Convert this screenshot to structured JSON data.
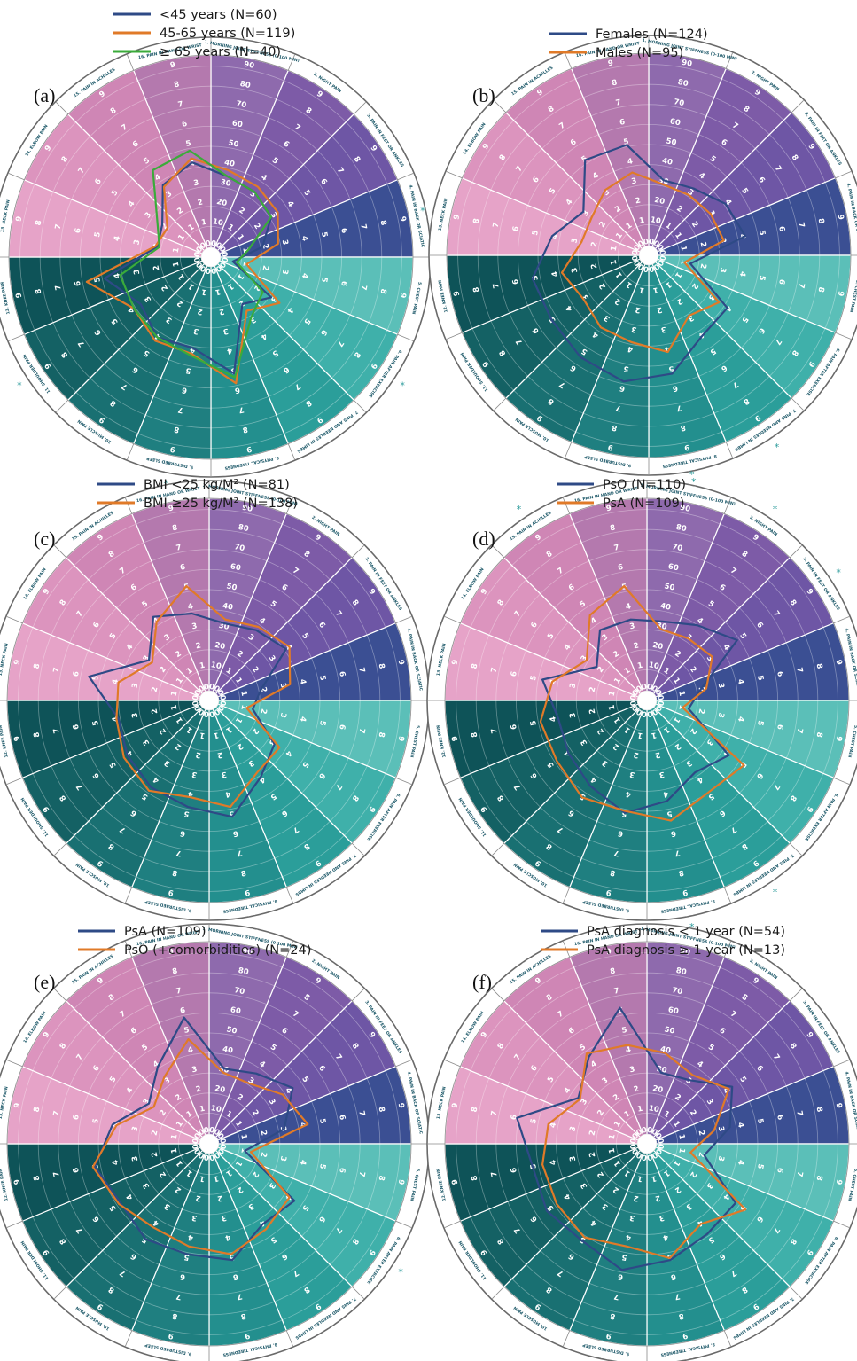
{
  "colors": {
    "series_blue": "#2e4a86",
    "series_orange": "#e07a28",
    "series_green": "#3aab3a",
    "star": "#2a9a9a",
    "segment_fills": [
      "#8e6aad",
      "#7d5ba7",
      "#6e56a5",
      "#3b4f93",
      "#5bbfb8",
      "#3fb0aa",
      "#2b9e9a",
      "#238f8e",
      "#1f7f80",
      "#197072",
      "#146164",
      "#0e5358",
      "#e6a3c8",
      "#dc94be",
      "#cf86b5",
      "#b479ae"
    ]
  },
  "segments": [
    "1. MORNING JOINT STIFFNESS (0-100 MIN)",
    "2. NIGHT PAIN",
    "3. PAIN IN FEET OR ANKLES",
    "4. PAIN IN BACK OR SCIATIC",
    "5. CHEST PAIN",
    "6. PAIN AFTER EXERCISE",
    "7. PINS AND NEEDLES IN LIMBS",
    "8. PHYSICAL TIREDNESS",
    "9. DISTURBED SLEEP",
    "10. MUSCLE PAIN",
    "11. SHOULDER PAIN",
    "12. KNEE PAIN",
    "13. NECK PAIN",
    "14. ELBOW PAIN",
    "15. PAIN IN ACHILLES",
    "16. PAIN IN HAND OR WRIST"
  ],
  "tick_labels_morning": [
    "0",
    "10",
    "20",
    "30",
    "40",
    "50",
    "60",
    "70",
    "80",
    "90",
    "100"
  ],
  "tick_labels_scale": [
    "0",
    "1",
    "2",
    "3",
    "4",
    "5",
    "6",
    "7",
    "8",
    "9",
    "10"
  ],
  "chart_data": [
    {
      "type": "radar",
      "panel": "(a)",
      "r_range": [
        0,
        10
      ],
      "series": [
        {
          "name": "<45 years (N=60)",
          "color": "#2e4a86",
          "values": [
            3.5,
            3.3,
            3.0,
            2.0,
            0.5,
            3.0,
            2.2,
            5.3,
            4.0,
            4.2,
            3.6,
            4.8,
            2.1,
            2.3,
            3.7,
            4.2
          ]
        },
        {
          "name": "45-65 years (N=119)",
          "color": "#e07a28",
          "values": [
            3.8,
            3.6,
            3.4,
            2.8,
            1.2,
            3.5,
            2.6,
            5.8,
            4.3,
            4.4,
            4.0,
            5.7,
            2.2,
            2.0,
            3.6,
            4.4
          ]
        },
        {
          "name": "≥ 65 years (N=40)",
          "color": "#3aab3a",
          "values": [
            3.5,
            3.3,
            3.0,
            1.3,
            0.7,
            2.5,
            3.0,
            5.5,
            4.4,
            4.2,
            4.0,
            4.0,
            2.0,
            2.6,
            4.6,
            4.8
          ]
        }
      ],
      "significant_segments": [
        "4. PAIN IN BACK OR SCIATIC",
        "6. PAIN AFTER EXERCISE",
        "9. DISTURBED SLEEP",
        "11. SHOULDER PAIN"
      ]
    },
    {
      "type": "radar",
      "panel": "(b)",
      "r_range": [
        0,
        10
      ],
      "series": [
        {
          "name": "Females (N=124)",
          "color": "#2e4a86",
          "values": [
            3.2,
            3.4,
            4.0,
            4.3,
            1.5,
            4.1,
            4.2,
            5.4,
            5.8,
            5.5,
            5.2,
            5.3,
            4.3,
            3.3,
            5.1,
            5.0
          ]
        },
        {
          "name": "Males (N=95)",
          "color": "#e07a28",
          "values": [
            3.0,
            3.0,
            3.1,
            3.2,
            1.2,
            3.6,
            3.0,
            4.3,
            3.8,
            3.7,
            3.3,
            3.8,
            2.8,
            2.8,
            3.3,
            3.6
          ]
        }
      ],
      "significant_segments": [
        "4. PAIN IN BACK OR SCIATIC",
        "7. PINS AND NEEDLES IN LIMBS",
        "8. PHYSICAL TIREDNESS",
        "13. NECK PAIN"
      ]
    },
    {
      "type": "radar",
      "panel": "(c)",
      "r_range": [
        0,
        10
      ],
      "series": [
        {
          "name": "BMI <25 kg/M² (N=81)",
          "color": "#2e4a86",
          "values": [
            3.3,
            3.6,
            4.0,
            2.0,
            1.6,
            3.3,
            4.0,
            5.3,
            4.8,
            4.6,
            4.3,
            4.0,
            5.5,
            3.0,
            4.4,
            3.8
          ]
        },
        {
          "name": "BMI ≥25 kg/M² (N=138)",
          "color": "#e07a28",
          "values": [
            3.5,
            3.8,
            4.2,
            3.5,
            1.3,
            3.6,
            3.7,
            4.8,
            4.3,
            4.8,
            4.5,
            4.1,
            4.0,
            2.8,
            4.1,
            5.2
          ]
        }
      ],
      "significant_segments": [
        "13. NECK PAIN"
      ]
    },
    {
      "type": "radar",
      "panel": "(d)",
      "r_range": [
        0,
        10
      ],
      "series": [
        {
          "name": "PsO (N=110)",
          "color": "#2e4a86",
          "values": [
            3.4,
            3.9,
            4.8,
            2.1,
            1.5,
            4.3,
            3.7,
            4.5,
            5.1,
            4.5,
            4.1,
            3.9,
            4.7,
            2.4,
            3.6,
            3.5
          ]
        },
        {
          "name": "PsA (N=109)",
          "color": "#e07a28",
          "values": [
            3.0,
            3.1,
            3.3,
            2.4,
            1.2,
            5.2,
            4.9,
            5.5,
            5.0,
            5.2,
            4.8,
            4.8,
            4.2,
            3.0,
            4.5,
            5.2
          ]
        }
      ],
      "significant_segments": [
        "1. MORNING JOINT STIFFNESS (0-100 MIN)",
        "2. NIGHT PAIN",
        "3. PAIN IN FEET OR ANKLES",
        "5. CHEST PAIN",
        "7. PINS AND NEEDLES IN LIMBS",
        "8. PHYSICAL TIREDNESS",
        "15. PAIN IN ACHILLES"
      ]
    },
    {
      "type": "radar",
      "panel": "(e)",
      "r_range": [
        0,
        10
      ],
      "series": [
        {
          "name": "PsA (N=109)",
          "color": "#2e4a86",
          "values": [
            3.2,
            3.6,
            4.4,
            3.2,
            1.2,
            4.5,
            4.2,
            5.3,
            5.0,
            5.1,
            4.7,
            5.2,
            4.3,
            3.0,
            4.0,
            5.8
          ]
        },
        {
          "name": "PsO (+comorbidities) (N=24)",
          "color": "#e07a28",
          "values": [
            3.0,
            3.0,
            3.8,
            4.4,
            1.5,
            4.2,
            4.5,
            5.0,
            4.6,
            4.4,
            4.8,
            5.3,
            4.1,
            2.7,
            3.4,
            4.7
          ]
        }
      ],
      "significant_segments": [
        "4. PAIN IN BACK OR SCIATIC",
        "6. PAIN AFTER EXERCISE"
      ]
    },
    {
      "type": "radar",
      "panel": "(f)",
      "r_range": [
        0,
        10
      ],
      "series": [
        {
          "name": "PsA diagnosis < 1 year (N=54)",
          "color": "#2e4a86",
          "values": [
            3.0,
            3.2,
            4.5,
            3.6,
            2.3,
            4.7,
            4.8,
            5.3,
            5.8,
            5.2,
            5.4,
            5.2,
            6.0,
            3.5,
            4.6,
            6.3
          ]
        },
        {
          "name": "PsA diagnosis ≥ 1 year (N=13)",
          "color": "#e07a28",
          "values": [
            4.0,
            3.5,
            4.3,
            2.8,
            1.6,
            5.3,
            4.2,
            5.2,
            4.6,
            5.0,
            4.8,
            4.7,
            4.4,
            3.4,
            4.8,
            4.4
          ]
        }
      ],
      "significant_segments": []
    }
  ]
}
